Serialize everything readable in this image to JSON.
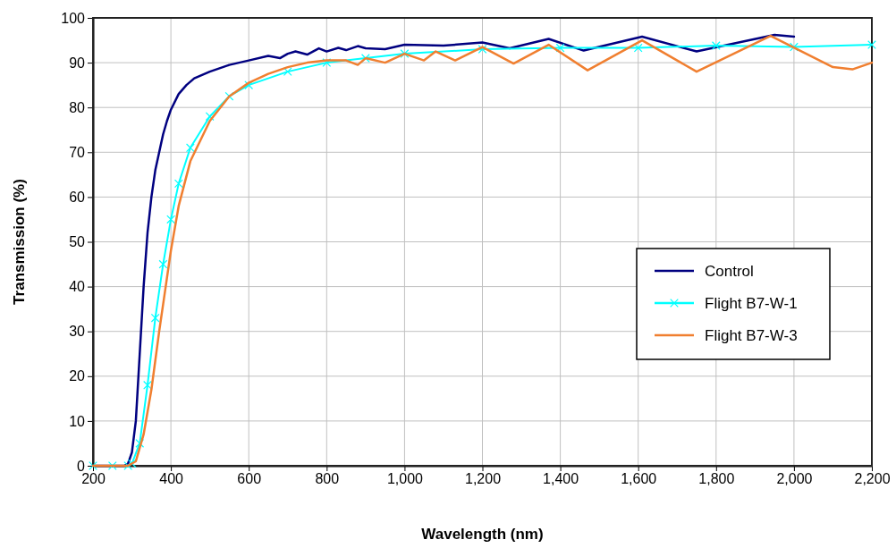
{
  "chart_data": {
    "type": "line",
    "xlabel": "Wavelength (nm)",
    "ylabel": "Transmission (%)",
    "xlim": [
      200,
      2200
    ],
    "xticks": [
      {
        "value": 200,
        "label": "200"
      },
      {
        "value": 400,
        "label": "400"
      },
      {
        "value": 600,
        "label": "600"
      },
      {
        "value": 800,
        "label": "800"
      },
      {
        "value": 1000,
        "label": "1,000"
      },
      {
        "value": 1200,
        "label": "1,200"
      },
      {
        "value": 1400,
        "label": "1,400"
      },
      {
        "value": 1600,
        "label": "1,600"
      },
      {
        "value": 1800,
        "label": "1,800"
      },
      {
        "value": 2000,
        "label": "2,000"
      },
      {
        "value": 2200,
        "label": "2,200"
      }
    ],
    "ylim": [
      0,
      100
    ],
    "yticks": [
      0,
      10,
      20,
      30,
      40,
      50,
      60,
      70,
      80,
      90,
      100
    ],
    "grid": true,
    "legend": "right",
    "line_style": "solid",
    "series": [
      {
        "name": "Control",
        "color": "#000080",
        "marker": "none",
        "x": [
          200,
          280,
          290,
          300,
          310,
          320,
          330,
          340,
          350,
          360,
          370,
          380,
          390,
          400,
          420,
          440,
          460,
          500,
          550,
          600,
          650,
          680,
          700,
          720,
          750,
          780,
          800,
          830,
          850,
          880,
          900,
          950,
          1000,
          1100,
          1200,
          1270,
          1370,
          1460,
          1610,
          1750,
          1950,
          2000
        ],
        "values": [
          0,
          0,
          0.5,
          3,
          10,
          25,
          40,
          52,
          60,
          66,
          70,
          74,
          77,
          79.5,
          83,
          85,
          86.5,
          88,
          89.5,
          90.5,
          91.5,
          91,
          92,
          92.5,
          91.8,
          93.2,
          92.5,
          93.3,
          92.8,
          93.7,
          93.2,
          93,
          94,
          93.8,
          94.5,
          93.2,
          95.3,
          92.7,
          95.8,
          92.5,
          96.2,
          95.8
        ]
      },
      {
        "name": "Flight B7-W-1",
        "color": "#00ffff",
        "marker": "cross",
        "x": [
          200,
          250,
          290,
          300,
          320,
          340,
          360,
          380,
          400,
          420,
          450,
          500,
          550,
          600,
          700,
          800,
          900,
          1000,
          1200,
          1400,
          1600,
          1800,
          2000,
          2200
        ],
        "values": [
          0,
          0,
          0,
          0.5,
          5,
          18,
          33,
          45,
          55,
          63,
          71,
          78,
          82.5,
          85,
          88,
          90,
          91,
          92,
          93,
          93.3,
          93.3,
          93.8,
          93.5,
          94
        ]
      },
      {
        "name": "Flight B7-W-3",
        "color": "#f07f30",
        "marker": "none",
        "x": [
          200,
          290,
          310,
          330,
          350,
          370,
          390,
          400,
          420,
          450,
          500,
          550,
          600,
          650,
          700,
          750,
          800,
          850,
          880,
          900,
          950,
          1000,
          1050,
          1080,
          1130,
          1200,
          1280,
          1370,
          1470,
          1610,
          1750,
          1940,
          2100,
          2150,
          2200
        ],
        "values": [
          0,
          0,
          1,
          7,
          17,
          30,
          42,
          48,
          58,
          68,
          77,
          82.5,
          85.5,
          87.5,
          89,
          90,
          90.5,
          90.5,
          89.5,
          91,
          90,
          92,
          90.5,
          92.5,
          90.5,
          93.5,
          89.8,
          94,
          88.3,
          95,
          88,
          96,
          89,
          88.5,
          90
        ]
      }
    ]
  }
}
